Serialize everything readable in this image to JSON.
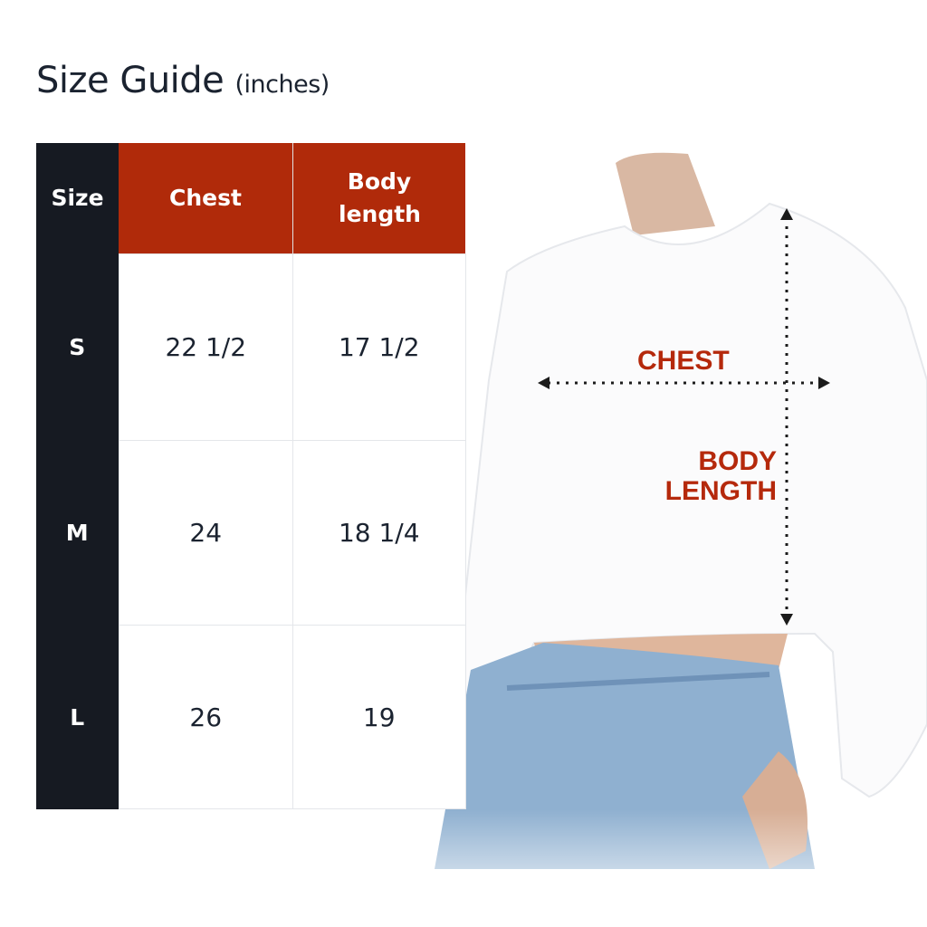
{
  "title": {
    "main": "Size Guide",
    "unit": "(inches)"
  },
  "colors": {
    "header_dark": "#161a22",
    "header_accent": "#b02a0a",
    "label_red": "#b5290c"
  },
  "table": {
    "headers": [
      "Size",
      "Chest",
      "Body length"
    ],
    "rows": [
      {
        "size": "S",
        "chest": "22 1/2",
        "body_length": "17 1/2"
      },
      {
        "size": "M",
        "chest": "24",
        "body_length": "18 1/4"
      },
      {
        "size": "L",
        "chest": "26",
        "body_length": "19"
      }
    ]
  },
  "diagram": {
    "chest_label": "CHEST",
    "body_length_label_1": "BODY",
    "body_length_label_2": "LENGTH"
  }
}
